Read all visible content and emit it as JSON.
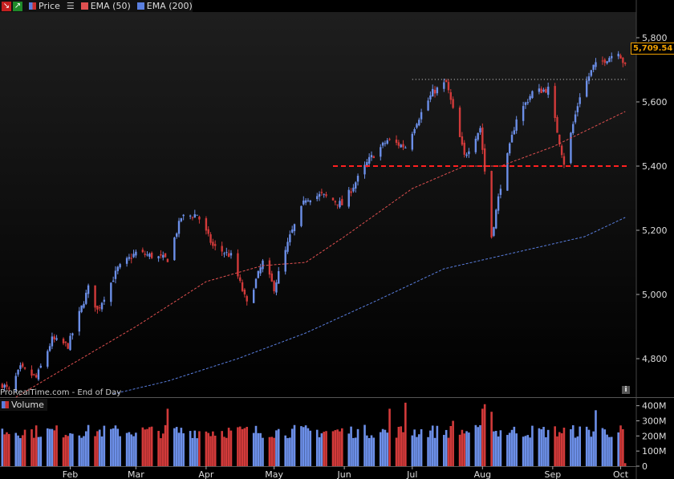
{
  "legend": {
    "price_label": "Price",
    "ema50_label": "EMA (50)",
    "ema200_label": "EMA (200)",
    "ema50_color": "#e05050",
    "ema200_color": "#5a7fe0",
    "price_color": "#c83030",
    "icon_collapse": "collapse-icon",
    "icon_expand": "expand-icon",
    "icon_menu": "menu-icon"
  },
  "watermark": "ProRealTime.com - End of Day",
  "info_icon": "i",
  "last_price": "5,709.54",
  "volume_label": "Volume",
  "colors": {
    "up": "#6c8fe8",
    "down": "#d23a3a",
    "support": "#ff2020",
    "resistance": "#dddddd",
    "background": "#000000"
  },
  "chart_data": [
    {
      "type": "candlestick",
      "title": "Price",
      "y_ticks": [
        "5,800",
        "5,600",
        "5,400",
        "5,200",
        "5,000",
        "4,800"
      ],
      "y_tick_values": [
        5800,
        5600,
        5400,
        5200,
        5000,
        4800
      ],
      "ylim": [
        4680,
        5880
      ],
      "x_tick_labels": [
        "Feb",
        "Mar",
        "Apr",
        "May",
        "Jun",
        "Jul",
        "Aug",
        "Sep",
        "Oct"
      ],
      "x_tick_dates": [
        "2024-02-01",
        "2024-03-01",
        "2024-04-01",
        "2024-05-01",
        "2024-06-01",
        "2024-07-01",
        "2024-08-01",
        "2024-09-01",
        "2024-10-01"
      ],
      "x_range": [
        "2024-01-01",
        "2024-10-04"
      ],
      "horizontal_lines": [
        {
          "value": 5400,
          "style": "dashed",
          "color": "#ff2020"
        },
        {
          "value": 5670,
          "style": "dotted",
          "color": "#dddddd",
          "from": "2024-07-01"
        }
      ],
      "grid": false,
      "close_keypoints": [
        {
          "date": "2024-01-02",
          "close": 4720
        },
        {
          "date": "2024-01-05",
          "close": 4700
        },
        {
          "date": "2024-01-10",
          "close": 4770
        },
        {
          "date": "2024-01-17",
          "close": 4740
        },
        {
          "date": "2024-01-24",
          "close": 4860
        },
        {
          "date": "2024-01-31",
          "close": 4840
        },
        {
          "date": "2024-02-09",
          "close": 5020
        },
        {
          "date": "2024-02-13",
          "close": 4950
        },
        {
          "date": "2024-02-22",
          "close": 5080
        },
        {
          "date": "2024-03-01",
          "close": 5130
        },
        {
          "date": "2024-03-08",
          "close": 5120
        },
        {
          "date": "2024-03-15",
          "close": 5110
        },
        {
          "date": "2024-03-21",
          "close": 5240
        },
        {
          "date": "2024-03-28",
          "close": 5250
        },
        {
          "date": "2024-04-04",
          "close": 5150
        },
        {
          "date": "2024-04-12",
          "close": 5120
        },
        {
          "date": "2024-04-19",
          "close": 4970
        },
        {
          "date": "2024-04-26",
          "close": 5100
        },
        {
          "date": "2024-05-01",
          "close": 5020
        },
        {
          "date": "2024-05-08",
          "close": 5180
        },
        {
          "date": "2024-05-15",
          "close": 5300
        },
        {
          "date": "2024-05-22",
          "close": 5310
        },
        {
          "date": "2024-05-31",
          "close": 5280
        },
        {
          "date": "2024-06-06",
          "close": 5350
        },
        {
          "date": "2024-06-12",
          "close": 5420
        },
        {
          "date": "2024-06-20",
          "close": 5480
        },
        {
          "date": "2024-06-28",
          "close": 5460
        },
        {
          "date": "2024-07-03",
          "close": 5540
        },
        {
          "date": "2024-07-10",
          "close": 5630
        },
        {
          "date": "2024-07-16",
          "close": 5660
        },
        {
          "date": "2024-07-24",
          "close": 5430
        },
        {
          "date": "2024-07-31",
          "close": 5520
        },
        {
          "date": "2024-08-05",
          "close": 5180
        },
        {
          "date": "2024-08-09",
          "close": 5340
        },
        {
          "date": "2024-08-16",
          "close": 5550
        },
        {
          "date": "2024-08-23",
          "close": 5630
        },
        {
          "date": "2024-08-30",
          "close": 5640
        },
        {
          "date": "2024-09-06",
          "close": 5410
        },
        {
          "date": "2024-09-13",
          "close": 5620
        },
        {
          "date": "2024-09-19",
          "close": 5710
        },
        {
          "date": "2024-09-26",
          "close": 5740
        },
        {
          "date": "2024-09-30",
          "close": 5760
        },
        {
          "date": "2024-10-03",
          "close": 5709.54
        }
      ],
      "ema50_keypoints": [
        {
          "date": "2024-01-08",
          "value": 4680
        },
        {
          "date": "2024-02-01",
          "value": 4780
        },
        {
          "date": "2024-03-01",
          "value": 4900
        },
        {
          "date": "2024-04-01",
          "value": 5040
        },
        {
          "date": "2024-04-26",
          "value": 5090
        },
        {
          "date": "2024-05-15",
          "value": 5100
        },
        {
          "date": "2024-06-01",
          "value": 5180
        },
        {
          "date": "2024-07-01",
          "value": 5330
        },
        {
          "date": "2024-07-24",
          "value": 5400
        },
        {
          "date": "2024-08-09",
          "value": 5400
        },
        {
          "date": "2024-09-01",
          "value": 5460
        },
        {
          "date": "2024-10-03",
          "value": 5570
        }
      ],
      "ema200_keypoints": [
        {
          "date": "2024-02-20",
          "value": 4690
        },
        {
          "date": "2024-03-15",
          "value": 4730
        },
        {
          "date": "2024-04-15",
          "value": 4800
        },
        {
          "date": "2024-05-15",
          "value": 4880
        },
        {
          "date": "2024-06-15",
          "value": 4980
        },
        {
          "date": "2024-07-15",
          "value": 5080
        },
        {
          "date": "2024-08-15",
          "value": 5130
        },
        {
          "date": "2024-09-15",
          "value": 5180
        },
        {
          "date": "2024-10-03",
          "value": 5240
        }
      ]
    },
    {
      "type": "bar",
      "title": "Volume",
      "y_ticks": [
        "400M",
        "300M",
        "200M",
        "100M",
        "0"
      ],
      "y_tick_values": [
        400,
        300,
        200,
        100,
        0
      ],
      "ylim": [
        0,
        430
      ],
      "unit": "M",
      "typical_volume": 230,
      "spikes": [
        {
          "date": "2024-03-15",
          "value": 380
        },
        {
          "date": "2024-06-21",
          "value": 380
        },
        {
          "date": "2024-06-28",
          "value": 420
        },
        {
          "date": "2024-07-19",
          "value": 300
        },
        {
          "date": "2024-08-01",
          "value": 380
        },
        {
          "date": "2024-08-02",
          "value": 410
        },
        {
          "date": "2024-08-05",
          "value": 360
        },
        {
          "date": "2024-09-20",
          "value": 370
        },
        {
          "date": "2024-10-03",
          "value": 20
        }
      ]
    }
  ]
}
